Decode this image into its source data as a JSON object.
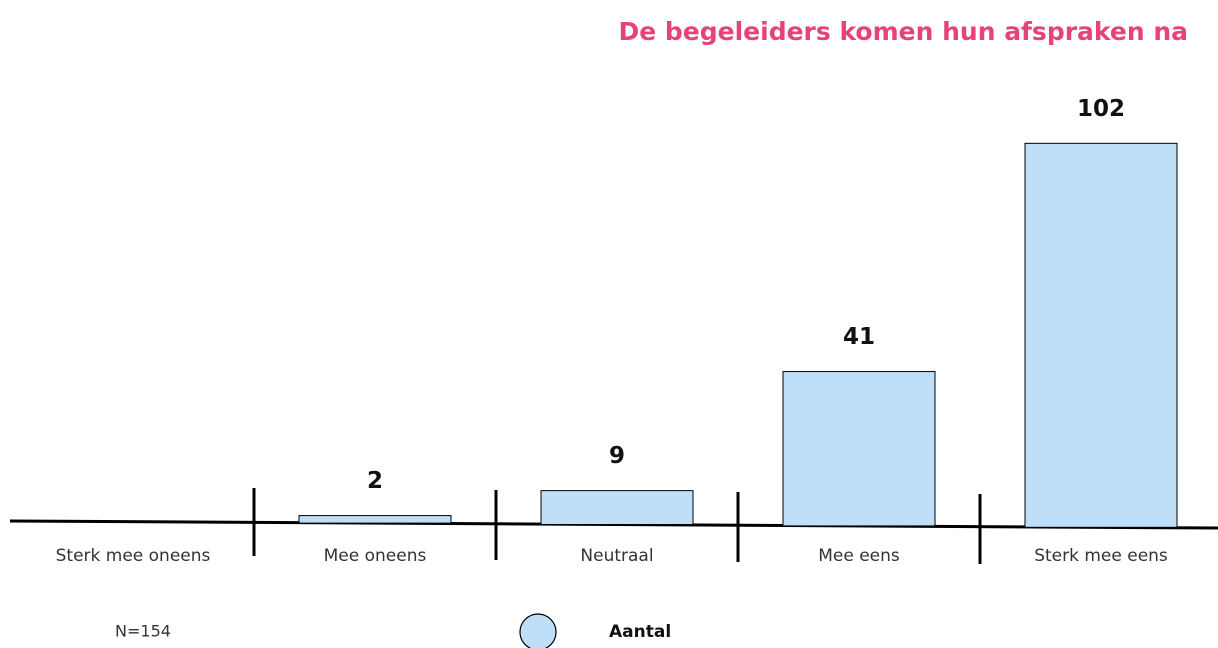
{
  "chart_data": {
    "type": "bar",
    "title": "De begeleiders komen hun afspraken na",
    "categories": [
      "Sterk mee oneens",
      "Mee oneens",
      "Neutraal",
      "Mee eens",
      "Sterk mee eens"
    ],
    "values": [
      null,
      2,
      9,
      41,
      102
    ],
    "color": "#bfdff9",
    "note": "N=154",
    "legend": {
      "name": "Aantal",
      "color": "#bfdff9"
    }
  }
}
